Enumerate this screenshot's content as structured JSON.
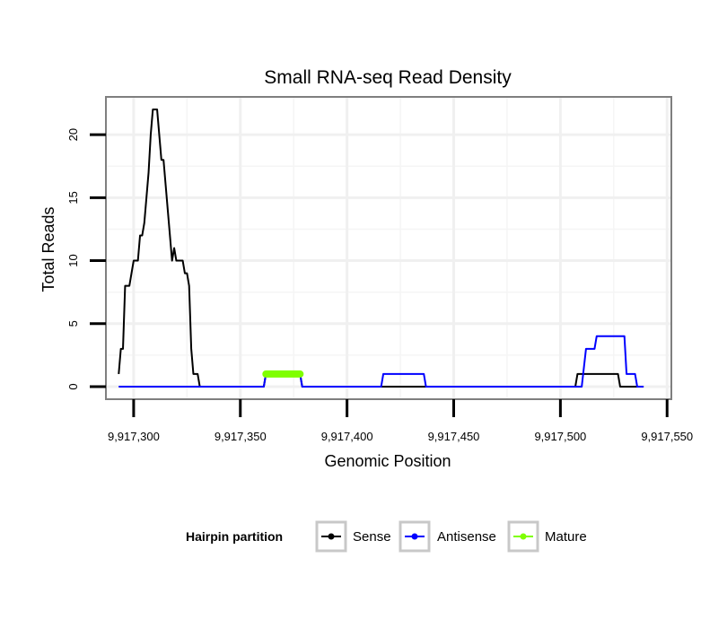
{
  "chart_data": {
    "type": "line",
    "title": "Small RNA-seq Read Density",
    "xlabel": "Genomic Position",
    "ylabel": "Total Reads",
    "xlim": [
      9917287,
      9917552
    ],
    "ylim": [
      -1,
      23
    ],
    "x_ticks": [
      9917300,
      9917350,
      9917400,
      9917450,
      9917500,
      9917550
    ],
    "x_tick_labels": [
      "9,917,300",
      "9,917,350",
      "9,917,400",
      "9,917,450",
      "9,917,500",
      "9,917,550"
    ],
    "y_ticks": [
      0,
      5,
      10,
      15,
      20
    ],
    "y_tick_labels": [
      "0",
      "5",
      "10",
      "15",
      "20"
    ],
    "grid": true,
    "legend": {
      "title": "Hairpin partition",
      "position": "bottom",
      "entries": [
        "Sense",
        "Antisense",
        "Mature"
      ]
    },
    "series": [
      {
        "name": "Sense",
        "color": "#000000",
        "points": [
          [
            9917293,
            1
          ],
          [
            9917294,
            3
          ],
          [
            9917295,
            3
          ],
          [
            9917296,
            8
          ],
          [
            9917297,
            8
          ],
          [
            9917298,
            8
          ],
          [
            9917299,
            9
          ],
          [
            9917300,
            10
          ],
          [
            9917301,
            10
          ],
          [
            9917302,
            10
          ],
          [
            9917303,
            12
          ],
          [
            9917304,
            12
          ],
          [
            9917305,
            13
          ],
          [
            9917306,
            15
          ],
          [
            9917307,
            17
          ],
          [
            9917308,
            20
          ],
          [
            9917309,
            22
          ],
          [
            9917310,
            22
          ],
          [
            9917311,
            22
          ],
          [
            9917312,
            20
          ],
          [
            9917313,
            18
          ],
          [
            9917314,
            18
          ],
          [
            9917315,
            16
          ],
          [
            9917316,
            14
          ],
          [
            9917317,
            12
          ],
          [
            9917318,
            10
          ],
          [
            9917319,
            11
          ],
          [
            9917320,
            10
          ],
          [
            9917321,
            10
          ],
          [
            9917322,
            10
          ],
          [
            9917323,
            10
          ],
          [
            9917324,
            9
          ],
          [
            9917325,
            9
          ],
          [
            9917326,
            8
          ],
          [
            9917327,
            3
          ],
          [
            9917328,
            1
          ],
          [
            9917330,
            1
          ],
          [
            9917331,
            0
          ],
          [
            9917361,
            0
          ],
          [
            9917362,
            1
          ],
          [
            9917378,
            1
          ],
          [
            9917379,
            0
          ],
          [
            9917507,
            0
          ],
          [
            9917508,
            1
          ],
          [
            9917527,
            1
          ],
          [
            9917528,
            0
          ],
          [
            9917539,
            0
          ]
        ]
      },
      {
        "name": "Antisense",
        "color": "#0000ff",
        "points": [
          [
            9917293,
            0
          ],
          [
            9917361,
            0
          ],
          [
            9917362,
            1
          ],
          [
            9917378,
            1
          ],
          [
            9917379,
            0
          ],
          [
            9917416,
            0
          ],
          [
            9917417,
            1
          ],
          [
            9917436,
            1
          ],
          [
            9917437,
            0
          ],
          [
            9917510,
            0
          ],
          [
            9917512,
            3
          ],
          [
            9917516,
            3
          ],
          [
            9917517,
            4
          ],
          [
            9917530,
            4
          ],
          [
            9917531,
            1
          ],
          [
            9917535,
            1
          ],
          [
            9917536,
            0
          ],
          [
            9917539,
            0
          ]
        ]
      },
      {
        "name": "Mature",
        "color": "#7fff00",
        "points": [
          [
            9917362,
            1
          ],
          [
            9917378,
            1
          ]
        ]
      }
    ]
  }
}
